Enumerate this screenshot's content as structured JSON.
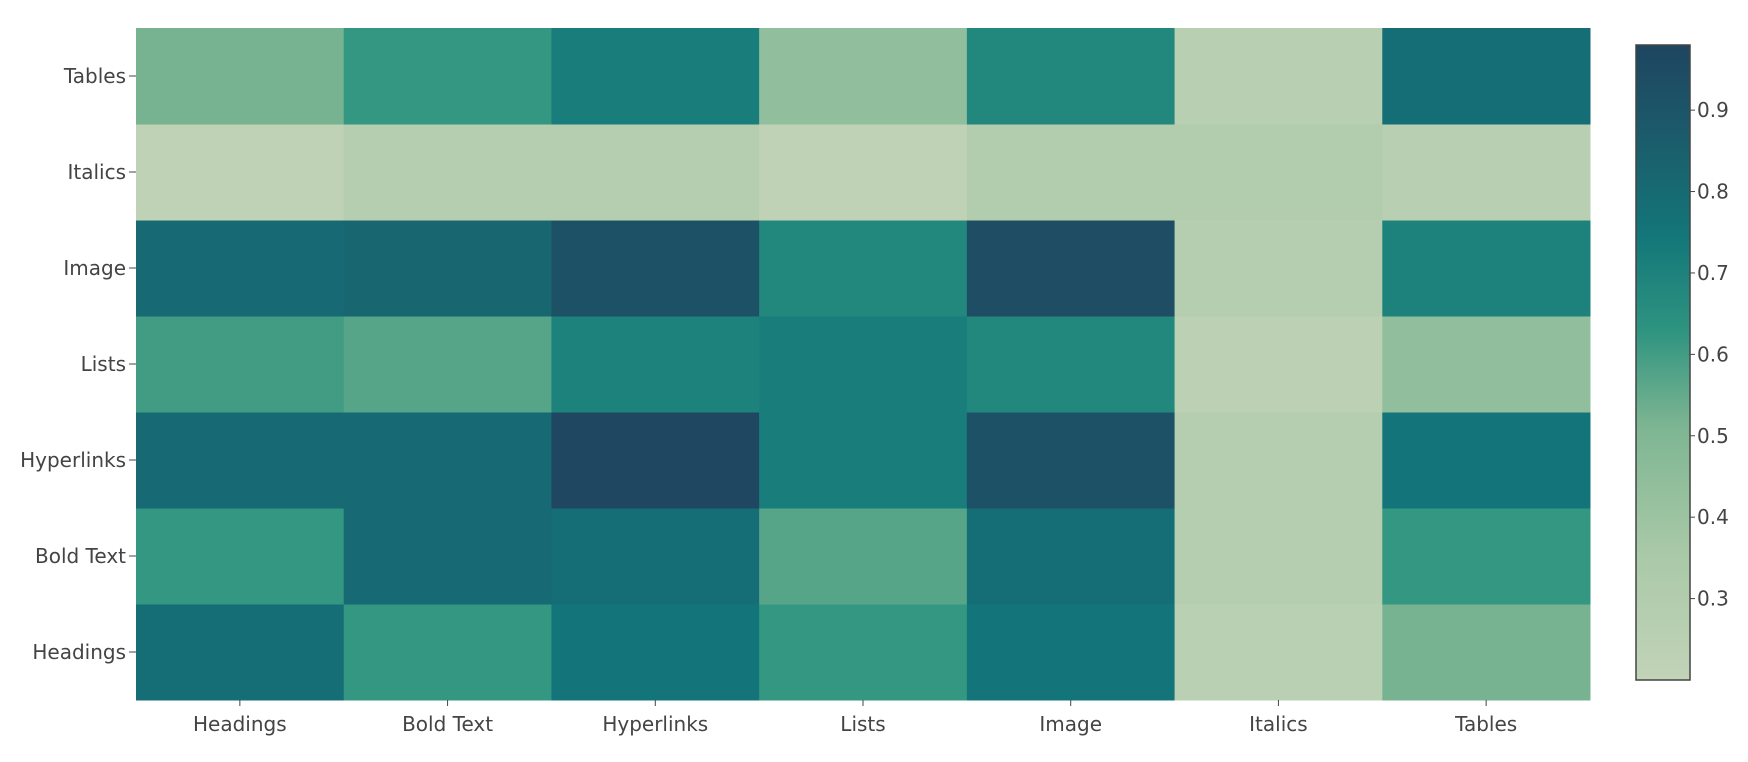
{
  "chart_data": {
    "type": "heatmap",
    "x_categories": [
      "Headings",
      "Bold Text",
      "Hyperlinks",
      "Lists",
      "Image",
      "Italics",
      "Tables"
    ],
    "y_categories": [
      "Headings",
      "Bold Text",
      "Hyperlinks",
      "Lists",
      "Image",
      "Italics",
      "Tables"
    ],
    "z": [
      [
        0.78,
        0.62,
        0.75,
        0.62,
        0.75,
        0.25,
        0.52
      ],
      [
        0.62,
        0.8,
        0.78,
        0.57,
        0.78,
        0.28,
        0.62
      ],
      [
        0.8,
        0.8,
        0.97,
        0.72,
        0.92,
        0.28,
        0.75
      ],
      [
        0.6,
        0.57,
        0.7,
        0.72,
        0.68,
        0.24,
        0.44
      ],
      [
        0.8,
        0.82,
        0.92,
        0.68,
        0.94,
        0.28,
        0.7
      ],
      [
        0.22,
        0.28,
        0.28,
        0.22,
        0.3,
        0.3,
        0.26
      ],
      [
        0.52,
        0.62,
        0.72,
        0.44,
        0.68,
        0.26,
        0.78
      ]
    ],
    "zmin": 0.2,
    "zmax": 0.98,
    "colorscale": [
      [
        0.0,
        "#c2d3b8"
      ],
      [
        0.2,
        "#a9c9a7"
      ],
      [
        0.4,
        "#7db592"
      ],
      [
        0.55,
        "#2e9480"
      ],
      [
        0.7,
        "#137679"
      ],
      [
        0.85,
        "#1b5c6b"
      ],
      [
        1.0,
        "#1f4560"
      ]
    ],
    "colorbar": {
      "ticks": [
        "0.3",
        "0.4",
        "0.5",
        "0.6",
        "0.7",
        "0.8",
        "0.9"
      ],
      "tick_values": [
        0.3,
        0.4,
        0.5,
        0.6,
        0.7,
        0.8,
        0.9
      ]
    },
    "grid": false,
    "title": "",
    "xlabel": "",
    "ylabel": ""
  }
}
